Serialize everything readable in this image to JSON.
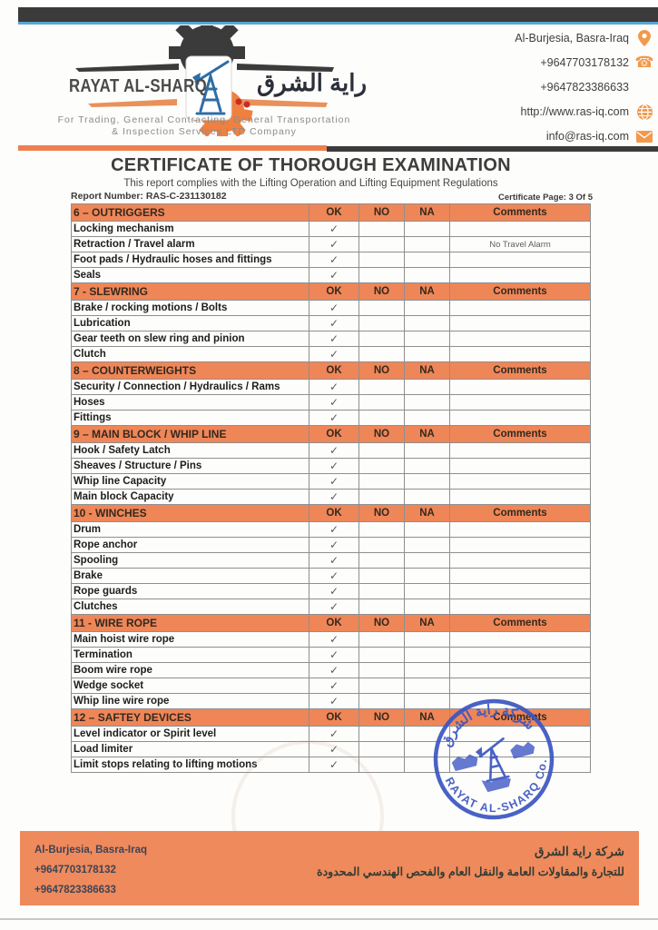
{
  "header": {
    "company_name": "RAYAT AL-SHARQ",
    "company_name_ar": "راية الشرق",
    "tagline1": "For Trading, General Contracting, General Transportation",
    "tagline2": "& Inspection Services LTD Company",
    "contact": {
      "location": "Al-Burjesia, Basra-Iraq",
      "phone1": "+9647703178132",
      "phone2": "+9647823386633",
      "website": "http://www.ras-iq.com",
      "email": "info@ras-iq.com"
    }
  },
  "title_block": {
    "title": "CERTIFICATE OF THOROUGH EXAMINATION",
    "subtitle": "This report complies with the Lifting Operation and Lifting Equipment Regulations",
    "report_label": "Report Number: RAS-C-231130182",
    "page_label": "Certificate Page: 3 Of 5"
  },
  "table": {
    "columns": [
      "OK",
      "NO",
      "NA",
      "Comments"
    ],
    "check_glyph": "✓",
    "sections": [
      {
        "title": "6 – OUTRIGGERS",
        "rows": [
          {
            "item": "Locking mechanism",
            "ok": true,
            "no": false,
            "na": false,
            "comment": ""
          },
          {
            "item": "Retraction / Travel alarm",
            "ok": true,
            "no": false,
            "na": false,
            "comment": "No Travel Alarm"
          },
          {
            "item": "Foot pads / Hydraulic hoses and fittings",
            "ok": true,
            "no": false,
            "na": false,
            "comment": ""
          },
          {
            "item": "Seals",
            "ok": true,
            "no": false,
            "na": false,
            "comment": ""
          }
        ]
      },
      {
        "title": "7 - SLEWRING",
        "rows": [
          {
            "item": "Brake / rocking motions / Bolts",
            "ok": true,
            "no": false,
            "na": false,
            "comment": ""
          },
          {
            "item": "Lubrication",
            "ok": true,
            "no": false,
            "na": false,
            "comment": ""
          },
          {
            "item": "Gear teeth on slew ring and pinion",
            "ok": true,
            "no": false,
            "na": false,
            "comment": ""
          },
          {
            "item": "Clutch",
            "ok": true,
            "no": false,
            "na": false,
            "comment": ""
          }
        ]
      },
      {
        "title": "8 – COUNTERWEIGHTS",
        "rows": [
          {
            "item": "Security / Connection / Hydraulics / Rams",
            "ok": true,
            "no": false,
            "na": false,
            "comment": ""
          },
          {
            "item": "Hoses",
            "ok": true,
            "no": false,
            "na": false,
            "comment": ""
          },
          {
            "item": "Fittings",
            "ok": true,
            "no": false,
            "na": false,
            "comment": ""
          }
        ]
      },
      {
        "title": "9 – MAIN BLOCK / WHIP LINE",
        "rows": [
          {
            "item": "Hook / Safety Latch",
            "ok": true,
            "no": false,
            "na": false,
            "comment": ""
          },
          {
            "item": "Sheaves / Structure / Pins",
            "ok": true,
            "no": false,
            "na": false,
            "comment": ""
          },
          {
            "item": "Whip line Capacity",
            "ok": true,
            "no": false,
            "na": false,
            "comment": ""
          },
          {
            "item": "Main block Capacity",
            "ok": true,
            "no": false,
            "na": false,
            "comment": ""
          }
        ]
      },
      {
        "title": "10 - WINCHES",
        "rows": [
          {
            "item": "Drum",
            "ok": true,
            "no": false,
            "na": false,
            "comment": ""
          },
          {
            "item": "Rope anchor",
            "ok": true,
            "no": false,
            "na": false,
            "comment": ""
          },
          {
            "item": "Spooling",
            "ok": true,
            "no": false,
            "na": false,
            "comment": ""
          },
          {
            "item": "Brake",
            "ok": true,
            "no": false,
            "na": false,
            "comment": ""
          },
          {
            "item": "Rope guards",
            "ok": true,
            "no": false,
            "na": false,
            "comment": ""
          },
          {
            "item": "Clutches",
            "ok": true,
            "no": false,
            "na": false,
            "comment": ""
          }
        ]
      },
      {
        "title": "11 - WIRE ROPE",
        "rows": [
          {
            "item": "Main hoist wire rope",
            "ok": true,
            "no": false,
            "na": false,
            "comment": ""
          },
          {
            "item": "Termination",
            "ok": true,
            "no": false,
            "na": false,
            "comment": ""
          },
          {
            "item": "Boom wire rope",
            "ok": true,
            "no": false,
            "na": false,
            "comment": ""
          },
          {
            "item": "Wedge socket",
            "ok": true,
            "no": false,
            "na": false,
            "comment": ""
          },
          {
            "item": "Whip line wire rope",
            "ok": true,
            "no": false,
            "na": false,
            "comment": ""
          }
        ]
      },
      {
        "title": "12 – SAFTEY DEVICES",
        "rows": [
          {
            "item": "Level indicator or Spirit level",
            "ok": true,
            "no": false,
            "na": false,
            "comment": ""
          },
          {
            "item": "Load limiter",
            "ok": true,
            "no": false,
            "na": false,
            "comment": ""
          },
          {
            "item": "Limit stops relating to lifting motions",
            "ok": true,
            "no": false,
            "na": false,
            "comment": ""
          }
        ]
      }
    ]
  },
  "stamp": {
    "top_ar": "شركة راية الشرق",
    "bottom_en": "RAYAT AL-SHARQ Co."
  },
  "footer": {
    "address": "Al-Burjesia, Basra-Iraq",
    "phone1": "+9647703178132",
    "phone2": "+9647823386633",
    "company_ar": "شركة راية الشرق",
    "services_ar": "للتجارة والمقاولات العامة والنقل العام والفحص الهندسي المحدودة"
  },
  "colors": {
    "accent_orange": "#ef8658",
    "footer_orange": "#ef8a5c",
    "bar_dark": "#3b3b3b",
    "line_blue": "#58a6d3",
    "icon_orange": "#f2994d",
    "stamp_blue": "#3a55c2"
  }
}
